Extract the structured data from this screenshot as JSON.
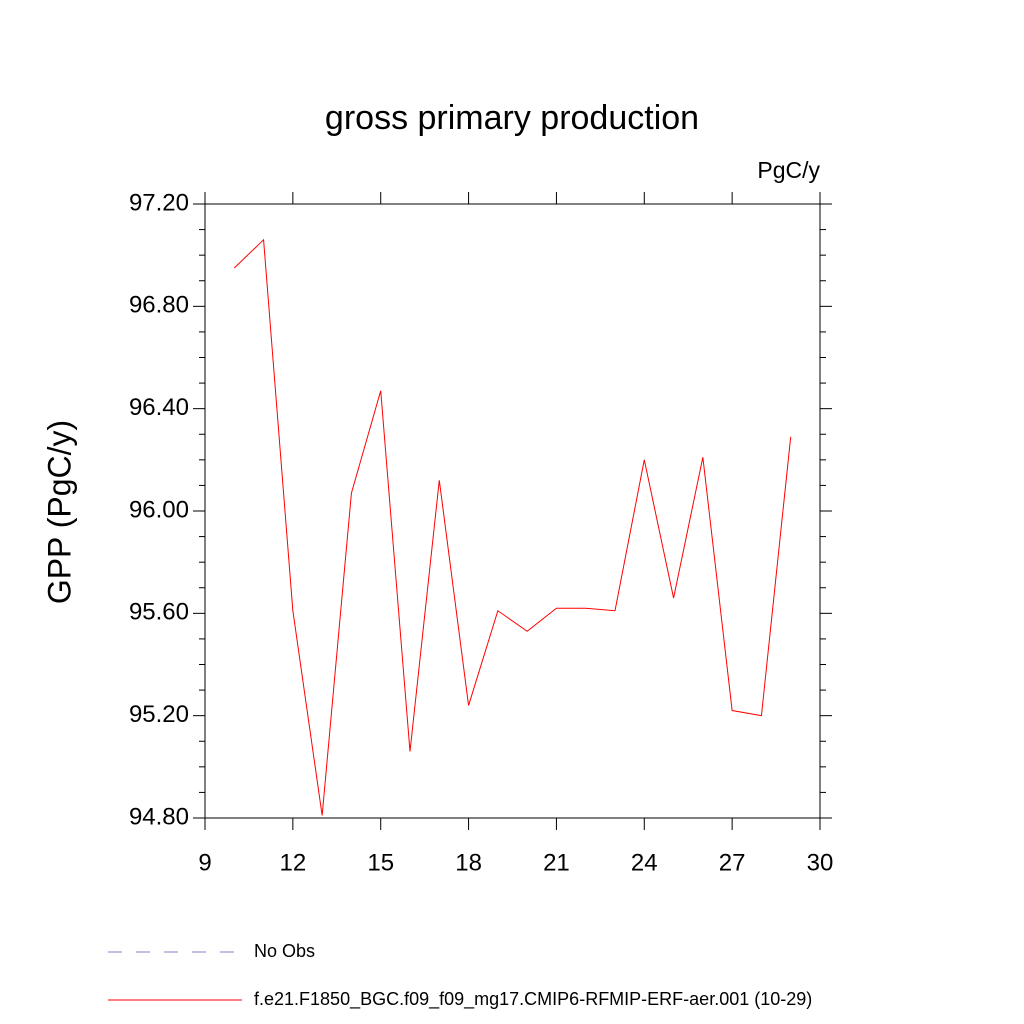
{
  "chart_data": {
    "type": "line",
    "title": "gross primary production",
    "units": "PgC/y",
    "y_label": "GPP  (PgC/y)",
    "x": [
      10,
      11,
      12,
      13,
      14,
      15,
      16,
      17,
      18,
      19,
      20,
      21,
      22,
      23,
      24,
      25,
      26,
      27,
      28,
      29
    ],
    "series": [
      {
        "name": "No Obs",
        "color": "#8080c0",
        "dashed": true,
        "values": [
          null,
          null,
          null,
          null,
          null,
          null,
          null,
          null,
          null,
          null,
          null,
          null,
          null,
          null,
          null,
          null,
          null,
          null,
          null,
          null
        ]
      },
      {
        "name": "f.e21.F1850_BGC.f09_f09_mg17.CMIP6-RFMIP-ERF-aer.001 (10-29)",
        "color": "#ff0000",
        "dashed": false,
        "values": [
          96.95,
          97.06,
          95.61,
          94.81,
          96.07,
          96.47,
          95.06,
          96.12,
          95.24,
          95.61,
          95.53,
          95.62,
          95.62,
          95.61,
          96.2,
          95.66,
          96.21,
          95.22,
          95.2,
          96.29
        ]
      }
    ],
    "xlim": [
      9,
      30
    ],
    "xticks": [
      9,
      12,
      15,
      18,
      21,
      24,
      27,
      30
    ],
    "ylim": [
      94.8,
      97.2
    ],
    "yticks": [
      {
        "value": 94.8,
        "label": "94.80"
      },
      {
        "value": 95.2,
        "label": "95.20"
      },
      {
        "value": 95.6,
        "label": "95.60"
      },
      {
        "value": 96.0,
        "label": "96.00"
      },
      {
        "value": 96.4,
        "label": "96.40"
      },
      {
        "value": 96.8,
        "label": "96.80"
      },
      {
        "value": 97.2,
        "label": "97.20"
      }
    ]
  }
}
